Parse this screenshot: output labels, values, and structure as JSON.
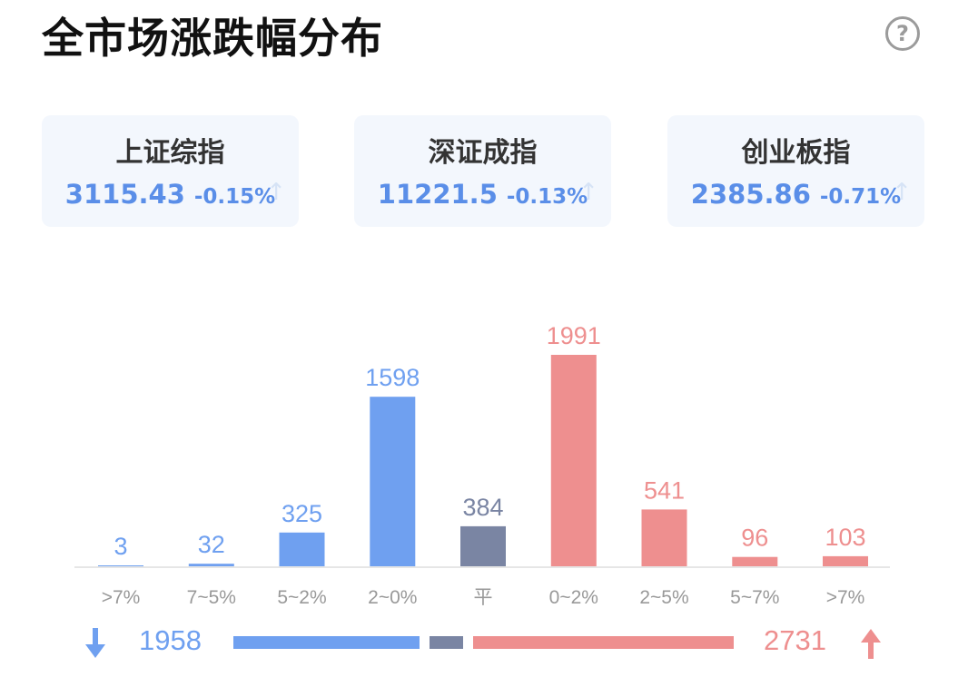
{
  "header": {
    "title": "全市场涨跌幅分布",
    "help_icon": "?"
  },
  "indices": [
    {
      "name": "上证综指",
      "value": "3115.43",
      "change": "-0.15%"
    },
    {
      "name": "深证成指",
      "value": "11221.5",
      "change": "-0.13%"
    },
    {
      "name": "创业板指",
      "value": "2385.86",
      "change": "-0.71%"
    }
  ],
  "chart_data": {
    "type": "bar",
    "categories": [
      ">7%",
      "7~5%",
      "5~2%",
      "2~0%",
      "平",
      "0~2%",
      "2~5%",
      "5~7%",
      ">7%"
    ],
    "values": [
      3,
      32,
      325,
      1598,
      384,
      1991,
      541,
      96,
      103
    ],
    "groups": [
      "down",
      "down",
      "down",
      "down",
      "flat",
      "up",
      "up",
      "up",
      "up"
    ],
    "colors": {
      "down": "#6fa0f0",
      "flat": "#7a85a3",
      "up": "#ee8f8f"
    },
    "title": "",
    "xlabel": "",
    "ylabel": "",
    "grid": false,
    "legend": "none"
  },
  "summary": {
    "down_count": "1958",
    "flat_count": "384",
    "up_count": "2731",
    "down_icon": "arrow-down-icon",
    "up_icon": "arrow-up-icon",
    "down_color": "#6fa0f0",
    "up_color": "#ee8f8f"
  }
}
